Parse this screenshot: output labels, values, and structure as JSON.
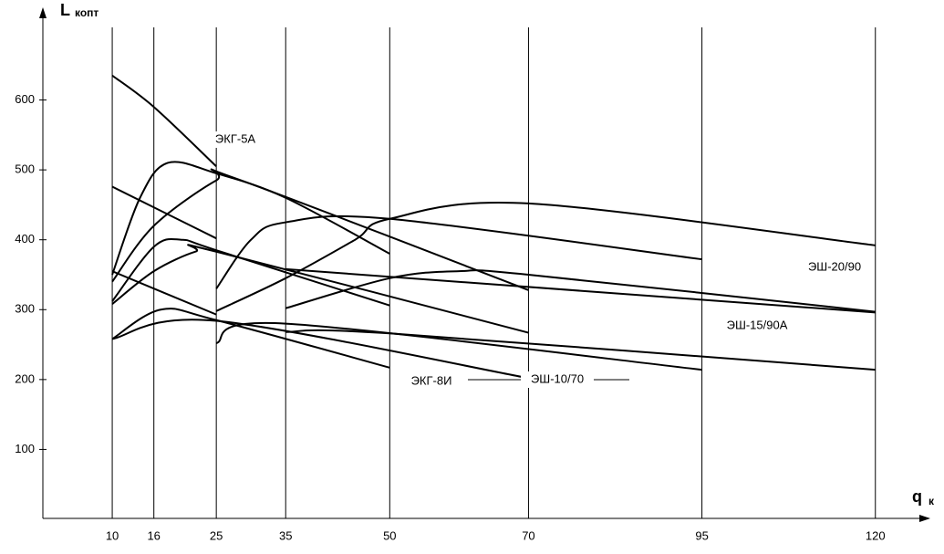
{
  "chart_data": {
    "type": "line",
    "ylabel": {
      "main": "L",
      "sub": "копт"
    },
    "xlabel": {
      "main": "q",
      "sub": "к"
    },
    "xlim": [
      0,
      127
    ],
    "ylim": [
      0,
      730
    ],
    "xticks": [
      10,
      16,
      25,
      35,
      50,
      70,
      95,
      120
    ],
    "yticks": [
      100,
      200,
      300,
      400,
      500,
      600
    ],
    "vertical_grid": true,
    "color": "#000000",
    "series": [
      {
        "x": [
          10,
          16,
          25
        ],
        "values": [
          635,
          590,
          505
        ]
      },
      {
        "x": [
          10,
          14,
          18,
          25,
          35,
          50
        ],
        "values": [
          350,
          460,
          510,
          495,
          460,
          380
        ]
      },
      {
        "x": [
          10,
          16,
          25,
          28,
          70
        ],
        "values": [
          340,
          420,
          485,
          487,
          328
        ]
      },
      {
        "x": [
          10,
          25
        ],
        "values": [
          476,
          402
        ]
      },
      {
        "x": [
          10,
          16,
          20,
          25,
          50
        ],
        "values": [
          312,
          390,
          400,
          385,
          306
        ]
      },
      {
        "x": [
          10,
          16,
          22,
          25,
          70
        ],
        "values": [
          308,
          355,
          383,
          383,
          267
        ]
      },
      {
        "x": [
          10,
          25
        ],
        "values": [
          355,
          293
        ]
      },
      {
        "x": [
          25,
          30,
          35,
          50,
          95
        ],
        "values": [
          330,
          400,
          425,
          430,
          372
        ]
      },
      {
        "x": [
          25,
          35,
          45,
          50,
          70,
          120
        ],
        "values": [
          298,
          345,
          400,
          430,
          452,
          392
        ]
      },
      {
        "x": [
          35,
          120
        ],
        "values": [
          358,
          296
        ]
      },
      {
        "x": [
          35,
          50,
          60,
          70,
          120
        ],
        "values": [
          302,
          345,
          355,
          350,
          297
        ]
      },
      {
        "x": [
          10,
          17,
          25,
          50
        ],
        "values": [
          258,
          300,
          285,
          217
        ]
      },
      {
        "x": [
          10,
          25,
          70
        ],
        "values": [
          258,
          284,
          202
        ]
      },
      {
        "x": [
          25,
          35,
          95
        ],
        "values": [
          252,
          280,
          214
        ]
      },
      {
        "x": [
          35,
          50,
          120
        ],
        "values": [
          268,
          266,
          214
        ]
      }
    ],
    "annotations": [
      "ЭКГ-5А",
      "ЭКГ-8И",
      "ЭШ-10/70",
      "ЭШ-15/90А",
      "ЭШ-20/90"
    ]
  }
}
